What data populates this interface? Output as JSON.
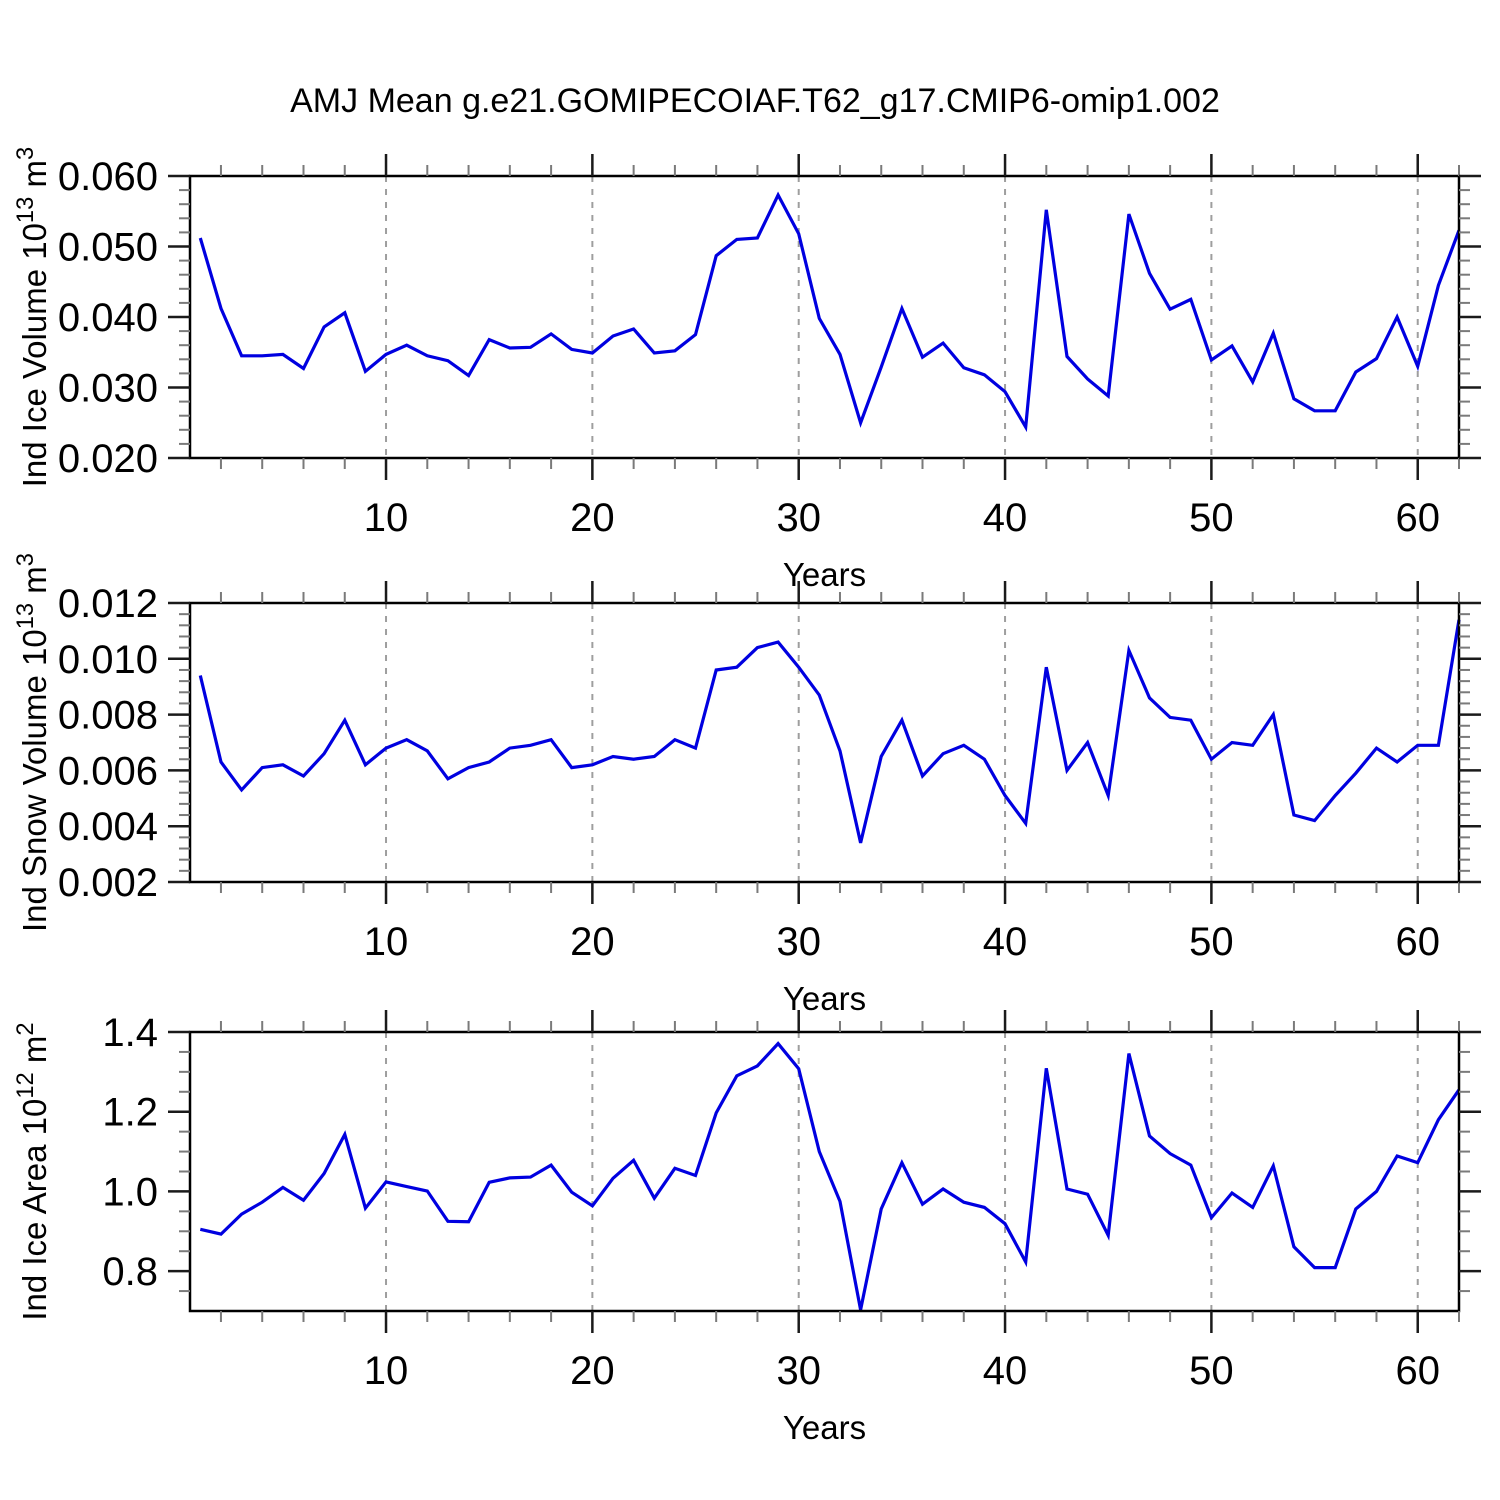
{
  "title": "AMJ Mean g.e21.GOMIPECOIAF.T62_g17.CMIP6-omip1.002",
  "style": {
    "background": "#ffffff",
    "line_color": "#0000e0",
    "grid_color": "#9e9e9e",
    "axis_color": "#000000",
    "major_tick_color": "#1a1a1a",
    "minor_tick_color": "#7a7a7a"
  },
  "chart_data": [
    {
      "type": "line",
      "ylabel": "Ind Ice Volume 10^{13} m^{3}",
      "xlabel": "Years",
      "x_start": 1,
      "x_step": 1,
      "values": [
        0.0512,
        0.0412,
        0.0345,
        0.0345,
        0.0347,
        0.0327,
        0.0386,
        0.0406,
        0.0323,
        0.0347,
        0.036,
        0.0345,
        0.0338,
        0.0317,
        0.0368,
        0.0356,
        0.0357,
        0.0376,
        0.0354,
        0.0349,
        0.0373,
        0.0383,
        0.0349,
        0.0352,
        0.0375,
        0.0487,
        0.051,
        0.0512,
        0.0573,
        0.0518,
        0.0398,
        0.0347,
        0.025,
        0.0329,
        0.0412,
        0.0343,
        0.0363,
        0.0328,
        0.0318,
        0.0294,
        0.0244,
        0.0552,
        0.0344,
        0.0312,
        0.0288,
        0.0546,
        0.0462,
        0.0411,
        0.0425,
        0.0339,
        0.0359,
        0.0308,
        0.0377,
        0.0284,
        0.0267,
        0.0267,
        0.0322,
        0.0341,
        0.04,
        0.033,
        0.0445,
        0.0523
      ],
      "ylim": [
        0.02,
        0.06
      ],
      "yticks": [
        0.02,
        0.03,
        0.04,
        0.05,
        0.06
      ],
      "ytick_labels": [
        "0.020",
        "0.030",
        "0.040",
        "0.050",
        "0.060"
      ],
      "yminor_step": 0.002,
      "xlim": [
        0.5,
        62
      ],
      "xticks": [
        10,
        20,
        30,
        40,
        50,
        60
      ],
      "xtick_labels": [
        "10",
        "20",
        "30",
        "40",
        "50",
        "60"
      ],
      "xminor_step": 2,
      "grid": {
        "vertical_dashed_at_xticks": true,
        "horizontal": false
      }
    },
    {
      "type": "line",
      "ylabel": "Ind Snow Volume 10^{13} m^{3}",
      "xlabel": "Years",
      "x_start": 1,
      "x_step": 1,
      "values": [
        0.0094,
        0.0063,
        0.0053,
        0.0061,
        0.0062,
        0.0058,
        0.0066,
        0.0078,
        0.0062,
        0.0068,
        0.0071,
        0.0067,
        0.0057,
        0.0061,
        0.0063,
        0.0068,
        0.0069,
        0.0071,
        0.0061,
        0.0062,
        0.0065,
        0.0064,
        0.0065,
        0.0071,
        0.0068,
        0.0096,
        0.0097,
        0.0104,
        0.0106,
        0.0097,
        0.0087,
        0.0067,
        0.0034,
        0.0065,
        0.0078,
        0.0058,
        0.0066,
        0.0069,
        0.0064,
        0.0051,
        0.0041,
        0.0097,
        0.006,
        0.007,
        0.0051,
        0.0103,
        0.0086,
        0.0079,
        0.0078,
        0.0064,
        0.007,
        0.0069,
        0.008,
        0.0044,
        0.0042,
        0.0051,
        0.0059,
        0.0068,
        0.0063,
        0.0069,
        0.0069,
        0.0114
      ],
      "ylim": [
        0.002,
        0.012
      ],
      "yticks": [
        0.002,
        0.004,
        0.006,
        0.008,
        0.01,
        0.012
      ],
      "ytick_labels": [
        "0.002",
        "0.004",
        "0.006",
        "0.008",
        "0.010",
        "0.012"
      ],
      "yminor_step": 0.0004,
      "xlim": [
        0.5,
        62
      ],
      "xticks": [
        10,
        20,
        30,
        40,
        50,
        60
      ],
      "xtick_labels": [
        "10",
        "20",
        "30",
        "40",
        "50",
        "60"
      ],
      "xminor_step": 2,
      "grid": {
        "vertical_dashed_at_xticks": true,
        "horizontal": false
      }
    },
    {
      "type": "line",
      "ylabel": "Ind Ice Area 10^{12} m^{2}",
      "xlabel": "Years",
      "x_start": 1,
      "x_step": 1,
      "values": [
        0.905,
        0.893,
        0.943,
        0.973,
        1.01,
        0.978,
        1.045,
        1.143,
        0.958,
        1.024,
        1.012,
        1.001,
        0.925,
        0.924,
        1.023,
        1.034,
        1.036,
        1.066,
        0.998,
        0.964,
        1.033,
        1.078,
        0.983,
        1.058,
        1.04,
        1.197,
        1.29,
        1.315,
        1.371,
        1.308,
        1.1,
        0.975,
        0.703,
        0.956,
        1.072,
        0.968,
        1.006,
        0.973,
        0.96,
        0.919,
        0.823,
        1.309,
        1.006,
        0.993,
        0.89,
        1.346,
        1.139,
        1.095,
        1.066,
        0.934,
        0.996,
        0.96,
        1.064,
        0.861,
        0.809,
        0.809,
        0.956,
        1.0,
        1.089,
        1.072,
        1.18,
        1.255
      ],
      "ylim": [
        0.7,
        1.4
      ],
      "yticks": [
        0.8,
        1.0,
        1.2,
        1.4
      ],
      "ytick_labels": [
        "0.8",
        "1.0",
        "1.2",
        "1.4"
      ],
      "yminor_step": 0.05,
      "xlim": [
        0.5,
        62
      ],
      "xticks": [
        10,
        20,
        30,
        40,
        50,
        60
      ],
      "xtick_labels": [
        "10",
        "20",
        "30",
        "40",
        "50",
        "60"
      ],
      "xminor_step": 2,
      "grid": {
        "vertical_dashed_at_xticks": true,
        "horizontal": false
      }
    }
  ]
}
